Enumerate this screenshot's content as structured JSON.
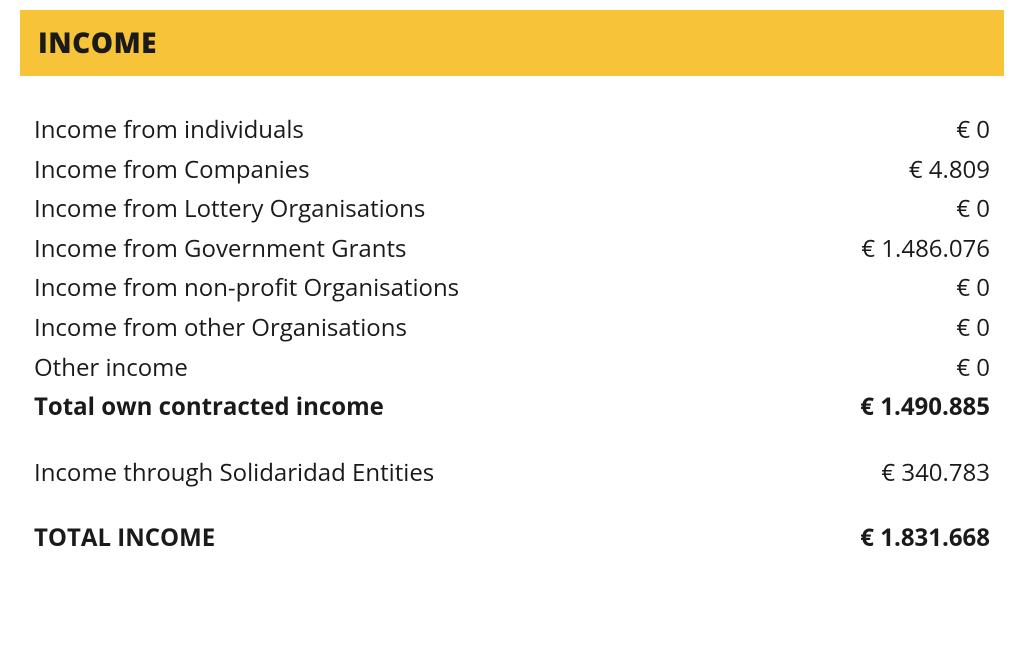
{
  "header": {
    "title": "INCOME",
    "background_color": "#f7c338",
    "title_color": "#1a1a1a",
    "title_fontsize": 28,
    "title_fontweight": 800
  },
  "table": {
    "type": "table",
    "currency_symbol": "€",
    "text_color": "#1a1a1a",
    "fontsize": 24,
    "line_height": 1.65,
    "rows": [
      {
        "label": "Income from individuals",
        "value": "€ 0",
        "bold": false
      },
      {
        "label": "Income from Companies",
        "value": "€ 4.809",
        "bold": false
      },
      {
        "label": "Income from Lottery Organisations",
        "value": "€ 0",
        "bold": false
      },
      {
        "label": "Income from Government Grants",
        "value": "€ 1.486.076",
        "bold": false
      },
      {
        "label": "Income from non-profit Organisations",
        "value": "€ 0",
        "bold": false
      },
      {
        "label": "Income from other Organisations",
        "value": "€ 0",
        "bold": false
      },
      {
        "label": "Other income",
        "value": "€ 0",
        "bold": false
      },
      {
        "label": "Total own contracted income",
        "value": "€ 1.490.885",
        "bold": true
      }
    ],
    "secondary_rows": [
      {
        "label": "Income through Solidaridad Entities",
        "value": "€ 340.783",
        "bold": false
      }
    ],
    "total_row": {
      "label": "TOTAL INCOME",
      "value": "€ 1.831.668",
      "bold": true
    }
  }
}
